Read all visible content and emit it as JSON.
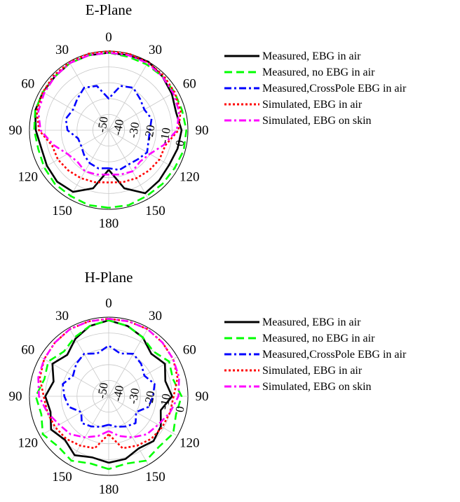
{
  "chart_data": [
    {
      "type": "polar",
      "title": "E-Plane",
      "angle_tick_labels": [
        "0",
        "30",
        "60",
        "90",
        "120",
        "150",
        "180",
        "150",
        "120",
        "90",
        "60",
        "30"
      ],
      "radial_tick_labels": [
        "0",
        "-10",
        "-20",
        "-30",
        "-40",
        "-50"
      ],
      "rlim": [
        -50,
        0
      ],
      "grid": true,
      "legend_position": "right",
      "series": [
        {
          "name": "Measured, EBG in air",
          "color": "#000000",
          "dash": "solid",
          "angles": [
            -180,
            -165,
            -150,
            -135,
            -120,
            -105,
            -90,
            -75,
            -60,
            -45,
            -30,
            -15,
            0,
            15,
            30,
            45,
            60,
            75,
            90,
            105,
            120,
            135,
            150,
            165,
            180
          ],
          "values": [
            -25,
            -12,
            -5,
            -4,
            -5,
            -6,
            -4,
            -2,
            -2,
            -2,
            -1,
            -1,
            -1,
            -1,
            0,
            -2,
            -4,
            -6,
            -4,
            -5,
            -6,
            -5,
            -4,
            -12,
            -25
          ]
        },
        {
          "name": "Measured, no EBG in air",
          "color": "#00ff00",
          "dash": "dash",
          "angles": [
            -180,
            -165,
            -150,
            -135,
            -120,
            -105,
            -90,
            -75,
            -60,
            -45,
            -30,
            -15,
            0,
            15,
            30,
            45,
            60,
            75,
            90,
            105,
            120,
            135,
            150,
            165,
            180
          ],
          "values": [
            -1,
            -1,
            -2,
            -2,
            -3,
            -4,
            -3,
            -2,
            -2,
            -2,
            -1,
            -1,
            -1,
            -2,
            -2,
            -2,
            -2,
            -2,
            -1,
            -1,
            -2,
            -2,
            -2,
            -1,
            -1
          ]
        },
        {
          "name": "Measured,CrossPole EBG in air",
          "color": "#0000ff",
          "dash": "dashdot",
          "angles": [
            -180,
            -165,
            -150,
            -135,
            -120,
            -105,
            -90,
            -75,
            -60,
            -45,
            -30,
            -15,
            0,
            15,
            30,
            45,
            60,
            75,
            90,
            105,
            120,
            135,
            150,
            165,
            180
          ],
          "values": [
            -26,
            -25,
            -26,
            -28,
            -30,
            -30,
            -24,
            -22,
            -24,
            -22,
            -19,
            -21,
            -30,
            -21,
            -19,
            -22,
            -24,
            -22,
            -24,
            -24,
            -22,
            -24,
            -25,
            -24,
            -26
          ]
        },
        {
          "name": "Simulated, EBG in air",
          "color": "#ff0000",
          "dash": "dot",
          "angles": [
            -180,
            -165,
            -150,
            -135,
            -120,
            -105,
            -90,
            -75,
            -60,
            -45,
            -30,
            -15,
            0,
            15,
            30,
            45,
            60,
            75,
            90,
            105,
            120,
            135,
            150,
            165,
            180
          ],
          "values": [
            -17,
            -16,
            -15,
            -14,
            -13,
            -13,
            -6,
            -3,
            -2,
            -1,
            -0.5,
            0,
            0,
            0,
            -0.5,
            -1,
            -2,
            -3,
            -6,
            -13,
            -13,
            -14,
            -15,
            -16,
            -17
          ]
        },
        {
          "name": "Simulated, EBG on skin",
          "color": "#ff00ff",
          "dash": "dashdot",
          "angles": [
            -180,
            -165,
            -150,
            -135,
            -120,
            -105,
            -90,
            -75,
            -60,
            -45,
            -30,
            -15,
            0,
            15,
            30,
            45,
            60,
            75,
            90,
            105,
            120,
            135,
            150,
            165,
            180
          ],
          "values": [
            -22,
            -21,
            -20,
            -22,
            -20,
            -14,
            -7,
            -4,
            -3,
            -2,
            -1,
            -1,
            -1,
            -1,
            -1,
            -2,
            -3,
            -4,
            -7,
            -14,
            -20,
            -22,
            -20,
            -21,
            -22
          ]
        }
      ]
    },
    {
      "type": "polar",
      "title": "H-Plane",
      "angle_tick_labels": [
        "0",
        "30",
        "60",
        "90",
        "120",
        "150",
        "180",
        "150",
        "120",
        "90",
        "60",
        "30"
      ],
      "radial_tick_labels": [
        "0",
        "-10",
        "-20",
        "-30",
        "-40",
        "-50"
      ],
      "rlim": [
        -50,
        0
      ],
      "grid": true,
      "legend_position": "right",
      "series": [
        {
          "name": "Measured, EBG in air",
          "color": "#000000",
          "dash": "solid",
          "angles": [
            -180,
            -165,
            -150,
            -135,
            -120,
            -105,
            -90,
            -75,
            -60,
            -45,
            -30,
            -15,
            0,
            15,
            30,
            45,
            60,
            75,
            90,
            105,
            120,
            135,
            150,
            165,
            180
          ],
          "values": [
            -8,
            -10,
            -7,
            -11,
            -8,
            -12,
            -10,
            -14,
            -9,
            -13,
            -8,
            -4,
            -2,
            -4,
            -7,
            -12,
            -9,
            -13,
            -10,
            -16,
            -12,
            -10,
            -12,
            -9,
            -8
          ]
        },
        {
          "name": "Measured, no EBG in air",
          "color": "#00ff00",
          "dash": "dash",
          "angles": [
            -180,
            -165,
            -150,
            -135,
            -120,
            -105,
            -90,
            -75,
            -60,
            -45,
            -30,
            -15,
            0,
            15,
            30,
            45,
            60,
            75,
            90,
            105,
            120,
            135,
            150,
            165,
            180
          ],
          "values": [
            -4,
            -6,
            -3,
            -5,
            -2,
            -6,
            -4,
            -8,
            -6,
            -10,
            -7,
            -4,
            -2,
            -4,
            -7,
            -10,
            -6,
            -8,
            -4,
            -6,
            -3,
            -5,
            -3,
            -6,
            -4
          ]
        },
        {
          "name": "Measured,CrossPole EBG in air",
          "color": "#0000ff",
          "dash": "dashdot",
          "angles": [
            -180,
            -165,
            -150,
            -135,
            -120,
            -105,
            -90,
            -75,
            -60,
            -45,
            -30,
            -15,
            0,
            15,
            30,
            45,
            60,
            75,
            90,
            105,
            120,
            135,
            150,
            165,
            180
          ],
          "values": [
            -32,
            -30,
            -28,
            -26,
            -30,
            -24,
            -22,
            -20,
            -24,
            -21,
            -19,
            -22,
            -18,
            -22,
            -19,
            -21,
            -24,
            -20,
            -22,
            -24,
            -30,
            -26,
            -28,
            -30,
            -32
          ]
        },
        {
          "name": "Simulated, EBG in air",
          "color": "#ff0000",
          "dash": "dot",
          "angles": [
            -180,
            -165,
            -150,
            -135,
            -120,
            -105,
            -90,
            -75,
            -60,
            -45,
            -30,
            -15,
            0,
            15,
            30,
            45,
            60,
            75,
            90,
            105,
            120,
            135,
            150,
            165,
            180
          ],
          "values": [
            -26,
            -16,
            -14,
            -12,
            -11,
            -10,
            -9,
            -5,
            -3,
            -2,
            -1,
            -1,
            -1,
            -1,
            -1,
            -2,
            -3,
            -5,
            -9,
            -10,
            -11,
            -12,
            -14,
            -16,
            -26
          ]
        },
        {
          "name": "Simulated, EBG on skin",
          "color": "#ff00ff",
          "dash": "dashdot",
          "angles": [
            -180,
            -165,
            -150,
            -135,
            -120,
            -105,
            -90,
            -75,
            -60,
            -45,
            -30,
            -15,
            0,
            15,
            30,
            45,
            60,
            75,
            90,
            105,
            120,
            135,
            150,
            165,
            180
          ],
          "values": [
            -28,
            -24,
            -20,
            -16,
            -14,
            -10,
            -6,
            -4,
            -3,
            -2,
            -1,
            -1,
            -1,
            -1,
            -1,
            -2,
            -3,
            -4,
            -6,
            -10,
            -14,
            -16,
            -20,
            -24,
            -28
          ]
        }
      ]
    }
  ]
}
